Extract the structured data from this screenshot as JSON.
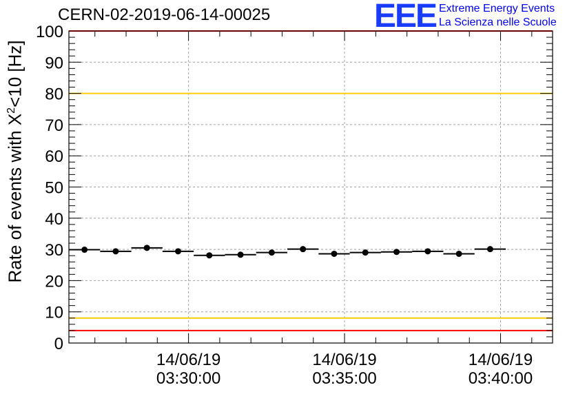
{
  "header": {
    "title": "CERN-02-2019-06-14-00025",
    "logo_text": "EEE",
    "logo_line1": "Extreme Energy Events",
    "logo_line2": "La Scienza nelle Scuole"
  },
  "chart_data": {
    "type": "scatter",
    "title": "CERN-02-2019-06-14-00025",
    "ylabel_prefix": "Rate of events with X",
    "ylabel_sup": "2",
    "ylabel_suffix": "<10 [Hz]",
    "ylim": [
      0,
      100
    ],
    "y_ticks": [
      "0",
      "10",
      "20",
      "30",
      "40",
      "50",
      "60",
      "70",
      "80",
      "90",
      "100"
    ],
    "xlim": [
      "03:26:10",
      "03:41:40"
    ],
    "x_ticks": [
      {
        "time": "03:30:00",
        "date": "14/06/19",
        "label": "03:30:00"
      },
      {
        "time": "03:35:00",
        "date": "14/06/19",
        "label": "03:35:00"
      },
      {
        "time": "03:40:00",
        "date": "14/06/19",
        "label": "03:40:00"
      }
    ],
    "bin_width_seconds": 60,
    "points": [
      {
        "time": "03:26:40",
        "y": 29.9
      },
      {
        "time": "03:27:40",
        "y": 29.4
      },
      {
        "time": "03:28:40",
        "y": 30.5
      },
      {
        "time": "03:29:40",
        "y": 29.4
      },
      {
        "time": "03:30:40",
        "y": 28.1
      },
      {
        "time": "03:31:40",
        "y": 28.3
      },
      {
        "time": "03:32:40",
        "y": 29.0
      },
      {
        "time": "03:33:40",
        "y": 30.1
      },
      {
        "time": "03:34:40",
        "y": 28.6
      },
      {
        "time": "03:35:40",
        "y": 29.0
      },
      {
        "time": "03:36:40",
        "y": 29.2
      },
      {
        "time": "03:37:40",
        "y": 29.4
      },
      {
        "time": "03:38:40",
        "y": 28.6
      },
      {
        "time": "03:39:40",
        "y": 30.1
      }
    ],
    "reference_lines": [
      {
        "y": 100,
        "color": "#ff0000"
      },
      {
        "y": 80,
        "color": "#ffcc00"
      },
      {
        "y": 8,
        "color": "#ffcc00"
      },
      {
        "y": 4,
        "color": "#ff0000"
      }
    ],
    "marker_color": "#000000",
    "grid": true
  }
}
